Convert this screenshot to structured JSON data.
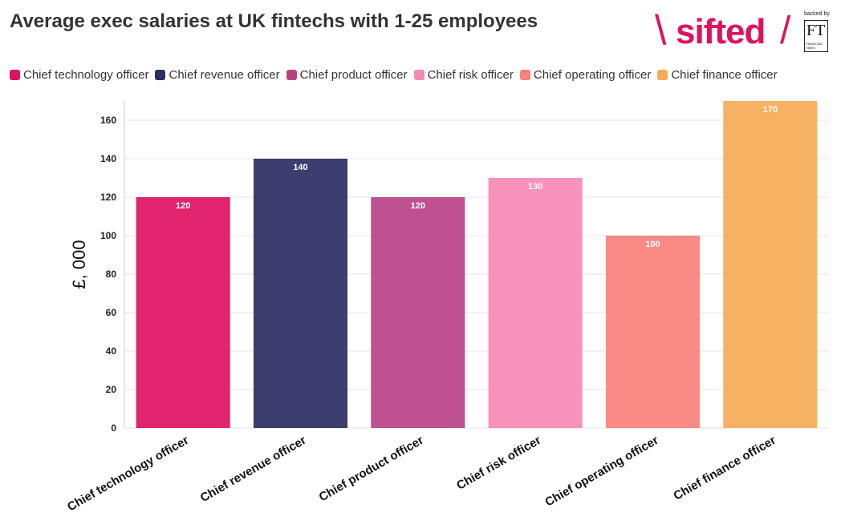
{
  "title": "Average exec salaries at UK fintechs with 1-25 employees",
  "logo": {
    "brand": "sifted",
    "backed_by": "backed by",
    "partner": "FT",
    "partner_full": "FINANCIAL TIMES"
  },
  "chart_data": {
    "type": "bar",
    "title": "Average exec salaries at UK fintechs with 1-25 employees",
    "categories": [
      "Chief technology officer",
      "Chief revenue officer",
      "Chief product officer",
      "Chief risk officer",
      "Chief operating officer",
      "Chief finance officer"
    ],
    "values": [
      120,
      140,
      120,
      130,
      100,
      170
    ],
    "colors": [
      "#e0115f",
      "#2b2e64",
      "#b94285",
      "#f689b4",
      "#f9807c",
      "#f5ab55"
    ],
    "data_labels": [
      "120",
      "140",
      "120",
      "130",
      "100",
      "170"
    ],
    "xlabel": "",
    "ylabel": "£, 000",
    "ylim": [
      0,
      170
    ],
    "yticks": [
      0,
      20,
      40,
      60,
      80,
      100,
      120,
      140,
      160
    ],
    "grid": true,
    "legend_position": "top-left"
  }
}
